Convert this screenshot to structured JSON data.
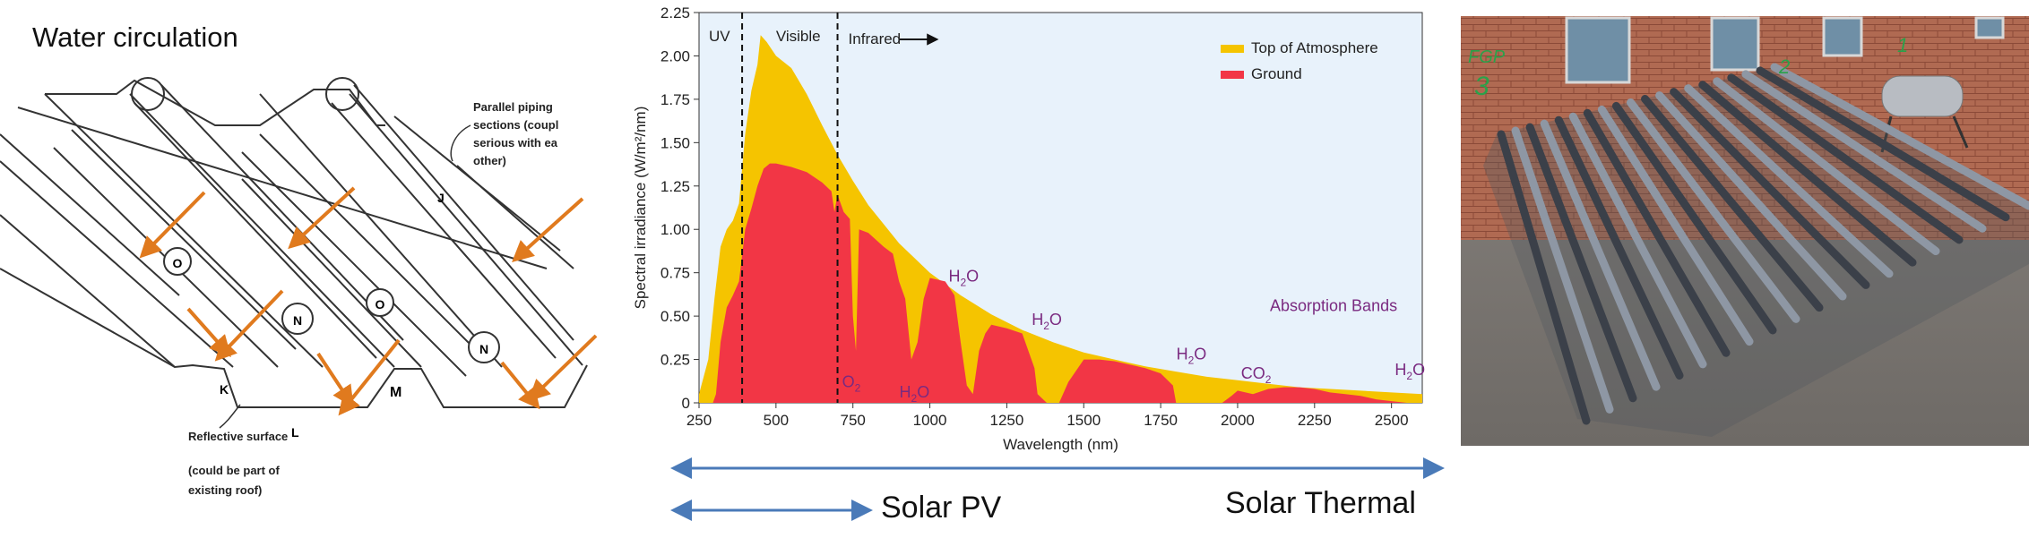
{
  "left_diagram": {
    "title": "Water circulation",
    "label_parallel": [
      "Parallel piping",
      "sections (coupl",
      "serious with ea",
      "other)"
    ],
    "label_reflective": "Reflective surface",
    "label_roof": [
      "(could be part of",
      "existing roof)"
    ],
    "letters": {
      "j": "J",
      "k": "K",
      "l": "L",
      "m": "M",
      "n": "N",
      "o": "O"
    }
  },
  "chart_data": {
    "type": "area",
    "xlabel": "Wavelength (nm)",
    "ylabel": "Spectral irradiance (W/m²/nm)",
    "xlim": [
      250,
      2600
    ],
    "ylim": [
      0,
      2.25
    ],
    "xticks": [
      250,
      500,
      750,
      1000,
      1250,
      1500,
      1750,
      2000,
      2250,
      2500
    ],
    "yticks": [
      0,
      0.25,
      0.5,
      0.75,
      1.0,
      1.25,
      1.5,
      1.75,
      2.0,
      2.25
    ],
    "ytick_labels": [
      "0",
      "0.25",
      "0.50",
      "0.75",
      "1.00",
      "1.25",
      "1.50",
      "1.75",
      "2.00",
      "2.25"
    ],
    "legend_position": "top-right",
    "grid": false,
    "background": "#e8f2fb",
    "regions": {
      "uv": "UV",
      "visible": "Visible",
      "infrared": "Infrared",
      "boundaries": [
        390,
        700
      ]
    },
    "absorption_label": "Absorption Bands",
    "annotations": [
      {
        "text": "O2",
        "x": 745,
        "y": 0.09
      },
      {
        "text": "H2O",
        "x": 950,
        "y": 0.03
      },
      {
        "text": "H2O",
        "x": 1110,
        "y": 0.7
      },
      {
        "text": "H2O",
        "x": 1380,
        "y": 0.45
      },
      {
        "text": "H2O",
        "x": 1850,
        "y": 0.25
      },
      {
        "text": "CO2",
        "x": 2060,
        "y": 0.14
      },
      {
        "text": "H2O",
        "x": 2560,
        "y": 0.16
      }
    ],
    "series": [
      {
        "name": "Top of Atmosphere",
        "color": "#f5c400",
        "x": [
          250,
          280,
          300,
          320,
          340,
          360,
          380,
          400,
          420,
          440,
          450,
          470,
          500,
          550,
          600,
          650,
          700,
          750,
          800,
          900,
          1000,
          1100,
          1200,
          1300,
          1400,
          1500,
          1600,
          1700,
          1800,
          1900,
          2000,
          2100,
          2200,
          2300,
          2400,
          2500,
          2600
        ],
        "values": [
          0.05,
          0.25,
          0.6,
          0.9,
          1.0,
          1.05,
          1.15,
          1.55,
          1.8,
          1.95,
          2.12,
          2.08,
          2.0,
          1.93,
          1.78,
          1.6,
          1.43,
          1.28,
          1.14,
          0.92,
          0.75,
          0.62,
          0.51,
          0.42,
          0.35,
          0.29,
          0.25,
          0.21,
          0.18,
          0.15,
          0.13,
          0.11,
          0.09,
          0.08,
          0.07,
          0.06,
          0.05
        ]
      },
      {
        "name": "Ground",
        "color": "#f23645",
        "x": [
          250,
          295,
          305,
          320,
          340,
          360,
          380,
          400,
          420,
          440,
          460,
          480,
          500,
          550,
          600,
          650,
          680,
          690,
          700,
          720,
          740,
          750,
          760,
          770,
          800,
          850,
          880,
          900,
          920,
          940,
          960,
          980,
          1000,
          1050,
          1080,
          1100,
          1120,
          1140,
          1160,
          1180,
          1200,
          1250,
          1300,
          1340,
          1350,
          1380,
          1400,
          1420,
          1450,
          1500,
          1550,
          1600,
          1650,
          1700,
          1750,
          1790,
          1800,
          1850,
          1900,
          1950,
          1980,
          2000,
          2050,
          2100,
          2150,
          2200,
          2250,
          2300,
          2350,
          2400,
          2450,
          2500,
          2550,
          2600
        ],
        "values": [
          0,
          0,
          0.05,
          0.35,
          0.55,
          0.62,
          0.7,
          1.0,
          1.12,
          1.25,
          1.35,
          1.38,
          1.38,
          1.36,
          1.33,
          1.27,
          1.22,
          1.1,
          1.2,
          1.1,
          1.06,
          0.5,
          0.3,
          1.0,
          0.98,
          0.9,
          0.86,
          0.7,
          0.6,
          0.25,
          0.35,
          0.6,
          0.72,
          0.7,
          0.62,
          0.35,
          0.1,
          0.05,
          0.3,
          0.4,
          0.45,
          0.43,
          0.4,
          0.2,
          0.05,
          0,
          0,
          0,
          0.12,
          0.25,
          0.25,
          0.24,
          0.22,
          0.2,
          0.17,
          0.1,
          0,
          0,
          0,
          0,
          0.04,
          0.07,
          0.05,
          0.08,
          0.09,
          0.09,
          0.08,
          0.06,
          0.05,
          0.04,
          0.02,
          0.01,
          0,
          0
        ]
      }
    ]
  },
  "captions": {
    "solar_pv": "Solar PV",
    "solar_thermal": "Solar Thermal"
  },
  "photo_annotations": {
    "fgp": "FGP",
    "num3": "3",
    "num2": "2",
    "num1": "1"
  }
}
